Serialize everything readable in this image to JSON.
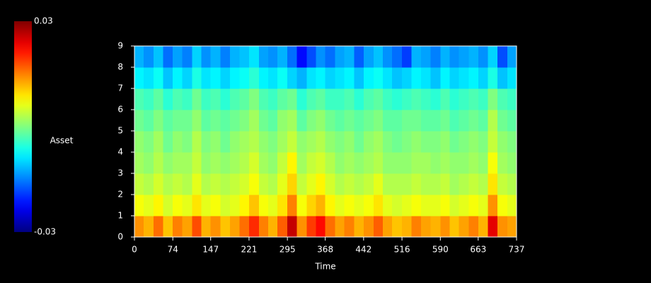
{
  "chart_data": {
    "type": "heatmap",
    "xlabel": "Time",
    "ylabel": "Asset",
    "colormap": "jet",
    "clim": [
      -0.03,
      0.03
    ],
    "xlim": [
      0,
      737
    ],
    "xticks": [
      0,
      74,
      147,
      221,
      295,
      368,
      442,
      516,
      590,
      663,
      737
    ],
    "ylim": [
      0,
      9
    ],
    "yticks": [
      0,
      1,
      2,
      3,
      4,
      5,
      6,
      7,
      8,
      9
    ],
    "x_edges": [
      0,
      18,
      37,
      55,
      74,
      92,
      111,
      129,
      147,
      166,
      184,
      203,
      221,
      240,
      258,
      276,
      295,
      313,
      332,
      350,
      368,
      387,
      405,
      424,
      442,
      461,
      479,
      497,
      516,
      534,
      553,
      571,
      590,
      608,
      626,
      645,
      663,
      682,
      700,
      719,
      737
    ],
    "y": [
      0,
      1,
      2,
      3,
      4,
      5,
      6,
      7,
      8
    ],
    "z": [
      [
        0.014,
        0.012,
        0.016,
        0.011,
        0.015,
        0.013,
        0.018,
        0.012,
        0.014,
        0.011,
        0.013,
        0.016,
        0.02,
        0.015,
        0.012,
        0.017,
        0.026,
        0.014,
        0.019,
        0.022,
        0.016,
        0.013,
        0.015,
        0.012,
        0.014,
        0.017,
        0.013,
        0.011,
        0.012,
        0.015,
        0.013,
        0.012,
        0.014,
        0.011,
        0.013,
        0.015,
        0.012,
        0.024,
        0.014,
        0.013
      ],
      [
        0.007,
        0.006,
        0.008,
        0.005,
        0.007,
        0.006,
        0.009,
        0.006,
        0.007,
        0.005,
        0.006,
        0.008,
        0.011,
        0.007,
        0.006,
        0.009,
        0.015,
        0.007,
        0.01,
        0.012,
        0.008,
        0.006,
        0.007,
        0.006,
        0.007,
        0.009,
        0.006,
        0.005,
        0.006,
        0.007,
        0.006,
        0.006,
        0.007,
        0.005,
        0.006,
        0.007,
        0.006,
        0.014,
        0.007,
        0.006
      ],
      [
        0.004,
        0.003,
        0.005,
        0.003,
        0.004,
        0.003,
        0.006,
        0.003,
        0.004,
        0.003,
        0.004,
        0.005,
        0.007,
        0.004,
        0.003,
        0.006,
        0.01,
        0.004,
        0.006,
        0.008,
        0.005,
        0.003,
        0.004,
        0.003,
        0.004,
        0.006,
        0.003,
        0.003,
        0.003,
        0.004,
        0.003,
        0.003,
        0.004,
        0.002,
        0.003,
        0.004,
        0.003,
        0.009,
        0.004,
        0.003
      ],
      [
        0.002,
        0.001,
        0.003,
        0.001,
        0.002,
        0.002,
        0.004,
        0.001,
        0.002,
        0.001,
        0.002,
        0.003,
        0.005,
        0.002,
        0.001,
        0.004,
        0.008,
        0.002,
        0.004,
        0.005,
        0.003,
        0.001,
        0.002,
        0.001,
        0.002,
        0.003,
        0.001,
        0.001,
        0.001,
        0.002,
        0.002,
        0.001,
        0.002,
        0.001,
        0.001,
        0.002,
        0.001,
        0.007,
        0.002,
        0.001
      ],
      [
        0.001,
        0,
        0.002,
        -0.001,
        0.001,
        0,
        0.003,
        0,
        0.001,
        -0.001,
        0.001,
        0.002,
        0.003,
        0.001,
        0,
        0.002,
        0.004,
        0.001,
        0.002,
        0.003,
        0.001,
        0,
        0.001,
        -0.001,
        0.001,
        0.002,
        0,
        -0.001,
        0,
        0.001,
        0,
        0,
        0.001,
        -0.001,
        0,
        0.001,
        0,
        0.004,
        0.001,
        0
      ],
      [
        -0.001,
        -0.002,
        0,
        -0.002,
        -0.001,
        -0.001,
        0.001,
        -0.002,
        -0.001,
        -0.002,
        -0.001,
        0,
        0.002,
        -0.001,
        -0.002,
        0.001,
        0.002,
        -0.002,
        0,
        0.001,
        -0.001,
        -0.002,
        -0.001,
        -0.002,
        -0.001,
        0,
        -0.002,
        -0.002,
        -0.001,
        -0.001,
        -0.002,
        -0.002,
        -0.001,
        -0.003,
        -0.002,
        -0.001,
        -0.002,
        0.003,
        -0.001,
        -0.002
      ],
      [
        -0.003,
        -0.004,
        -0.002,
        -0.005,
        -0.003,
        -0.004,
        -0.001,
        -0.004,
        -0.003,
        -0.005,
        -0.003,
        -0.002,
        0,
        -0.003,
        -0.004,
        -0.002,
        -0.001,
        -0.005,
        -0.003,
        -0.002,
        -0.004,
        -0.004,
        -0.003,
        -0.005,
        -0.003,
        -0.002,
        -0.004,
        -0.005,
        -0.004,
        -0.003,
        -0.004,
        -0.005,
        -0.003,
        -0.005,
        -0.004,
        -0.003,
        -0.004,
        0,
        -0.003,
        -0.004
      ],
      [
        -0.008,
        -0.009,
        -0.007,
        -0.011,
        -0.008,
        -0.01,
        -0.006,
        -0.009,
        -0.008,
        -0.01,
        -0.008,
        -0.007,
        -0.005,
        -0.008,
        -0.009,
        -0.007,
        -0.01,
        -0.012,
        -0.009,
        -0.008,
        -0.01,
        -0.009,
        -0.008,
        -0.011,
        -0.008,
        -0.007,
        -0.009,
        -0.011,
        -0.01,
        -0.008,
        -0.009,
        -0.011,
        -0.008,
        -0.01,
        -0.009,
        -0.008,
        -0.01,
        -0.006,
        -0.011,
        -0.009
      ],
      [
        -0.012,
        -0.014,
        -0.011,
        -0.016,
        -0.013,
        -0.015,
        -0.01,
        -0.014,
        -0.012,
        -0.015,
        -0.012,
        -0.011,
        -0.009,
        -0.013,
        -0.014,
        -0.012,
        -0.016,
        -0.022,
        -0.018,
        -0.014,
        -0.016,
        -0.013,
        -0.012,
        -0.017,
        -0.013,
        -0.011,
        -0.014,
        -0.016,
        -0.019,
        -0.012,
        -0.013,
        -0.015,
        -0.012,
        -0.014,
        -0.013,
        -0.012,
        -0.014,
        -0.01,
        -0.018,
        -0.013
      ]
    ]
  }
}
